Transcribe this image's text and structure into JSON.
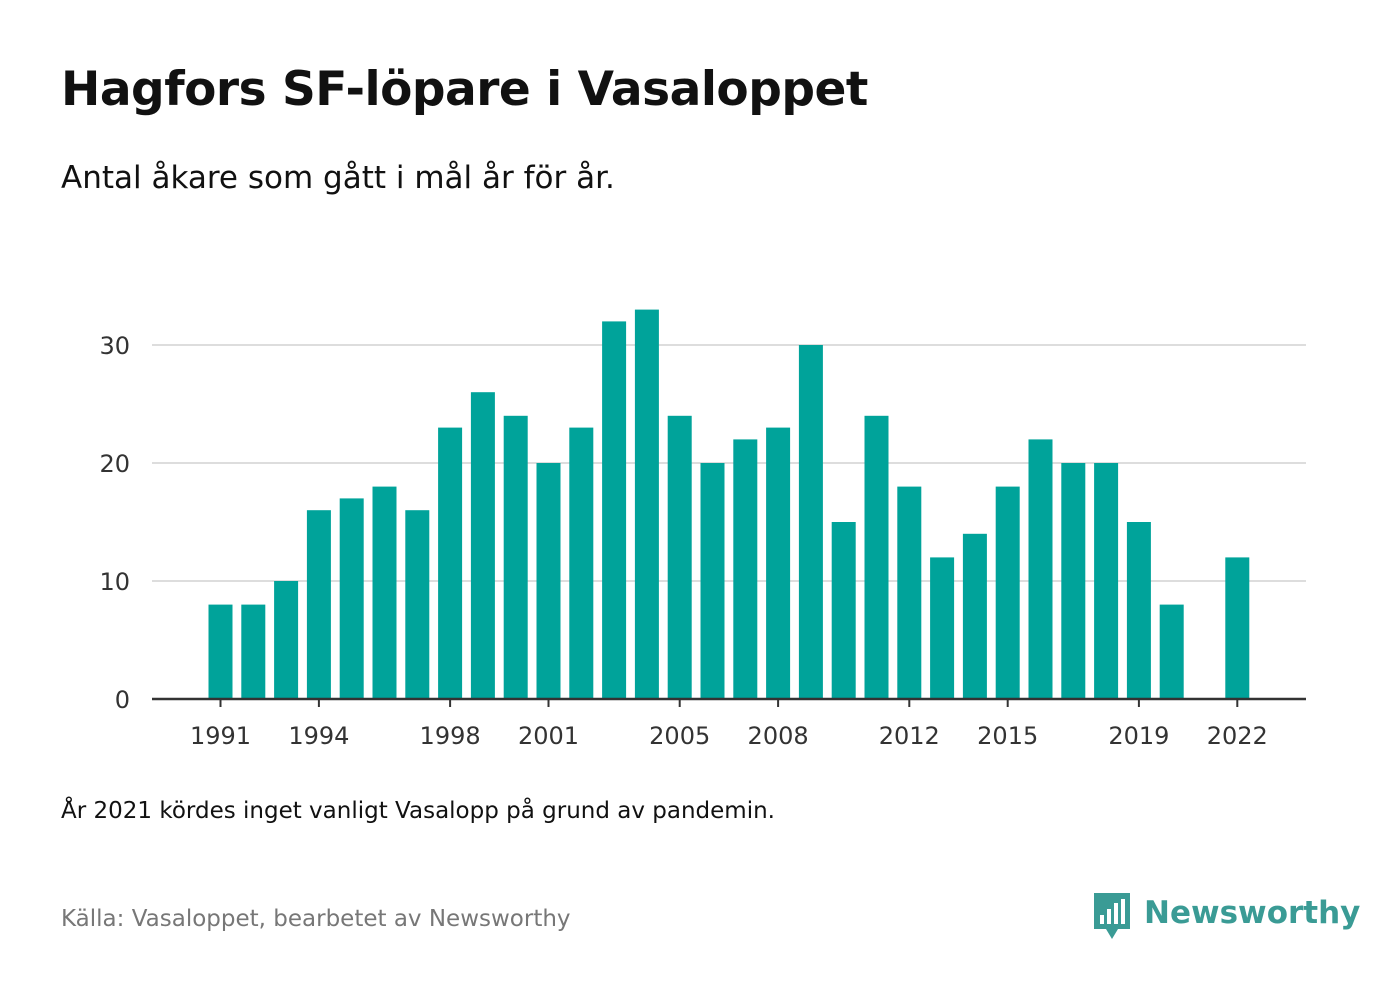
{
  "title": "Hagfors SF-löpare i Vasaloppet",
  "subtitle": "Antal åkare som gått i mål år för år.",
  "note": "År 2021 kördes inget vanligt Vasalopp på grund av pandemin.",
  "source": "Källa: Vasaloppet, bearbetet av Newsworthy",
  "brand": {
    "name": "Newsworthy",
    "icon": "newsworthy-logo-icon",
    "color": "#3a9b95"
  },
  "colors": {
    "bar": "#00a39a",
    "grid": "#dddddd",
    "axis": "#333333",
    "tick_text": "#333333"
  },
  "chart_data": {
    "type": "bar",
    "x": [
      1991,
      1992,
      1993,
      1994,
      1995,
      1996,
      1997,
      1998,
      1999,
      2000,
      2001,
      2002,
      2003,
      2004,
      2005,
      2006,
      2007,
      2008,
      2009,
      2010,
      2011,
      2012,
      2013,
      2014,
      2015,
      2016,
      2017,
      2018,
      2019,
      2020,
      2021,
      2022
    ],
    "values": [
      8,
      8,
      10,
      16,
      17,
      18,
      16,
      23,
      26,
      24,
      20,
      23,
      32,
      33,
      24,
      20,
      22,
      23,
      30,
      15,
      24,
      18,
      12,
      14,
      18,
      22,
      20,
      20,
      15,
      8,
      null,
      12
    ],
    "x_tick_labels": [
      "1991",
      "1994",
      "1998",
      "2001",
      "2005",
      "2008",
      "2012",
      "2015",
      "2019",
      "2022"
    ],
    "y_ticks": [
      0,
      10,
      20,
      30
    ],
    "ylim": [
      0,
      33
    ],
    "grid": true,
    "legend": "none",
    "xlabel": "",
    "ylabel": ""
  }
}
